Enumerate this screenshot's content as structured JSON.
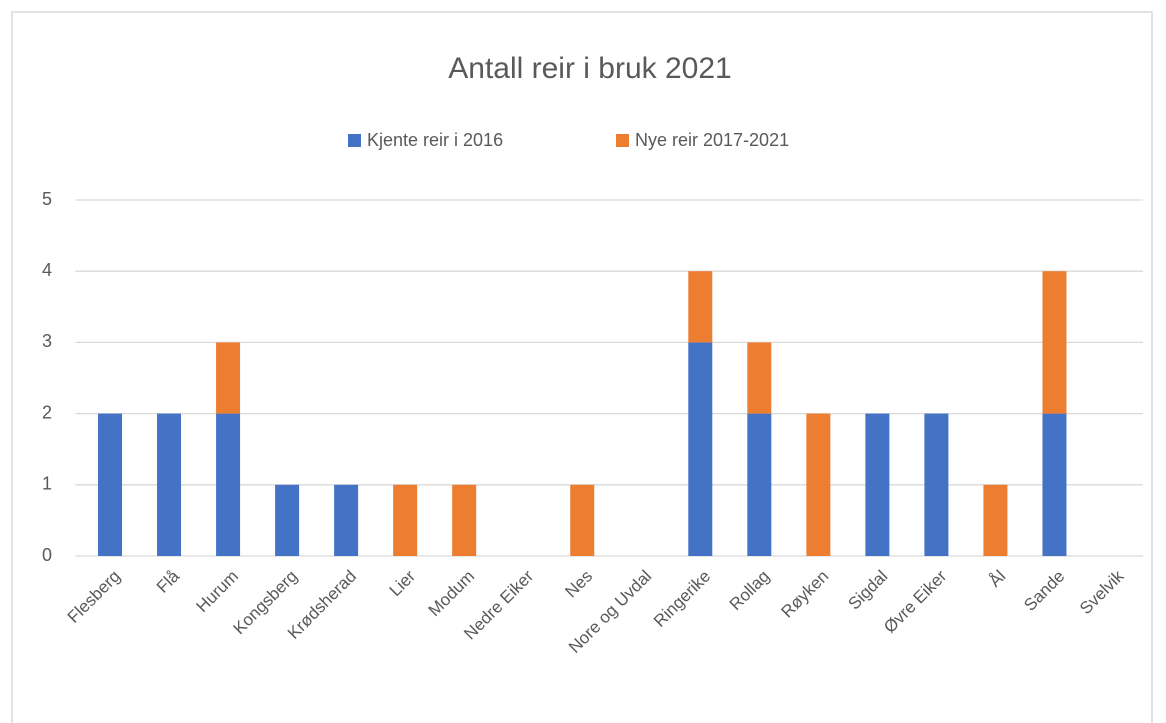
{
  "chart_data": {
    "type": "bar",
    "stacked": true,
    "title": "Antall reir i bruk 2021",
    "categories": [
      "Flesberg",
      "Flå",
      "Hurum",
      "Kongsberg",
      "Krødsherad",
      "Lier",
      "Modum",
      "Nedre Eiker",
      "Nes",
      "Nore og Uvdal",
      "Ringerike",
      "Rollag",
      "Røyken",
      "Sigdal",
      "Øvre Eiker",
      "Ål",
      "Sande",
      "Svelvik"
    ],
    "series": [
      {
        "name": "Kjente reir i 2016",
        "color": "#4472c4",
        "values": [
          2,
          2,
          2,
          1,
          1,
          0,
          0,
          0,
          0,
          0,
          3,
          2,
          0,
          2,
          2,
          0,
          2,
          0
        ]
      },
      {
        "name": "Nye reir 2017-2021",
        "color": "#ed7d31",
        "values": [
          0,
          0,
          1,
          0,
          0,
          1,
          1,
          0,
          1,
          0,
          1,
          1,
          2,
          0,
          0,
          1,
          2,
          0
        ]
      }
    ],
    "ylim": [
      0,
      5
    ],
    "yticks": [
      0,
      1,
      2,
      3,
      4,
      5
    ],
    "grid": true,
    "legend": "top"
  }
}
